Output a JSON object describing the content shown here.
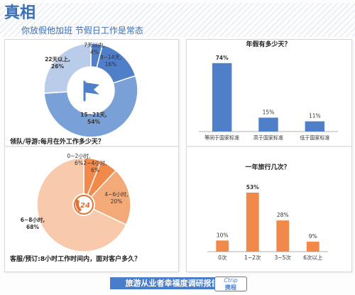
{
  "header": {
    "title": "真相",
    "subtitle": "你放假他加班   节假日工作是常态"
  },
  "footer": {
    "report": "旅游从业者幸福度调研报告",
    "logo_text": "Ctrip",
    "logo_sub": "携程"
  },
  "colors": {
    "blue_dark": "#4f7fc8",
    "blue_mid": "#7aa0d8",
    "blue_light": "#b9cce9",
    "orange_dark": "#f0894a",
    "orange_mid": "#f3a978",
    "orange_light": "#f8c9ab",
    "bar_blue": "#4f7fc8",
    "bar_orange": "#f0894a"
  },
  "chart_data": [
    {
      "type": "pie",
      "donut": true,
      "title": "领队/导游:每月在外工作多少天？",
      "center_icon": "flag-icon",
      "slices": [
        {
          "label": "7天以内,",
          "pct_label": "4%",
          "value": 4
        },
        {
          "label": "8~14天,",
          "pct_label": "16%",
          "value": 16
        },
        {
          "label": "15~21天,",
          "pct_label": "54%",
          "value": 54
        },
        {
          "label": "22天以上,",
          "pct_label": "26%",
          "value": 26
        }
      ]
    },
    {
      "type": "bar",
      "title": "年假有多少天？",
      "categories": [
        "等同于国家标准",
        "高于国家标准",
        "低于国家标准"
      ],
      "values": [
        74,
        15,
        11
      ],
      "labels": [
        "74%",
        "15%",
        "11%"
      ],
      "ylim": [
        0,
        80
      ]
    },
    {
      "type": "pie",
      "title": "客服/预订:8小时工作时间内，面对客户多久？",
      "center_icon": "24h-phone-icon",
      "center_label": "24",
      "slices": [
        {
          "label": "0~2小时,",
          "pct_label": "6%",
          "value": 6
        },
        {
          "label": "2~4小时,",
          "pct_label": "6%",
          "value": 6
        },
        {
          "label": "4~6小时,",
          "pct_label": "20%",
          "value": 20
        },
        {
          "label": "6~8小时,",
          "pct_label": "68%",
          "value": 68
        }
      ]
    },
    {
      "type": "bar",
      "title": "一年旅行几次？",
      "categories": [
        "0次",
        "1~2次",
        "3~5次",
        "6次以上"
      ],
      "values": [
        10,
        53,
        28,
        9
      ],
      "labels": [
        "10%",
        "53%",
        "28%",
        "9%"
      ],
      "ylim": [
        0,
        60
      ]
    }
  ]
}
